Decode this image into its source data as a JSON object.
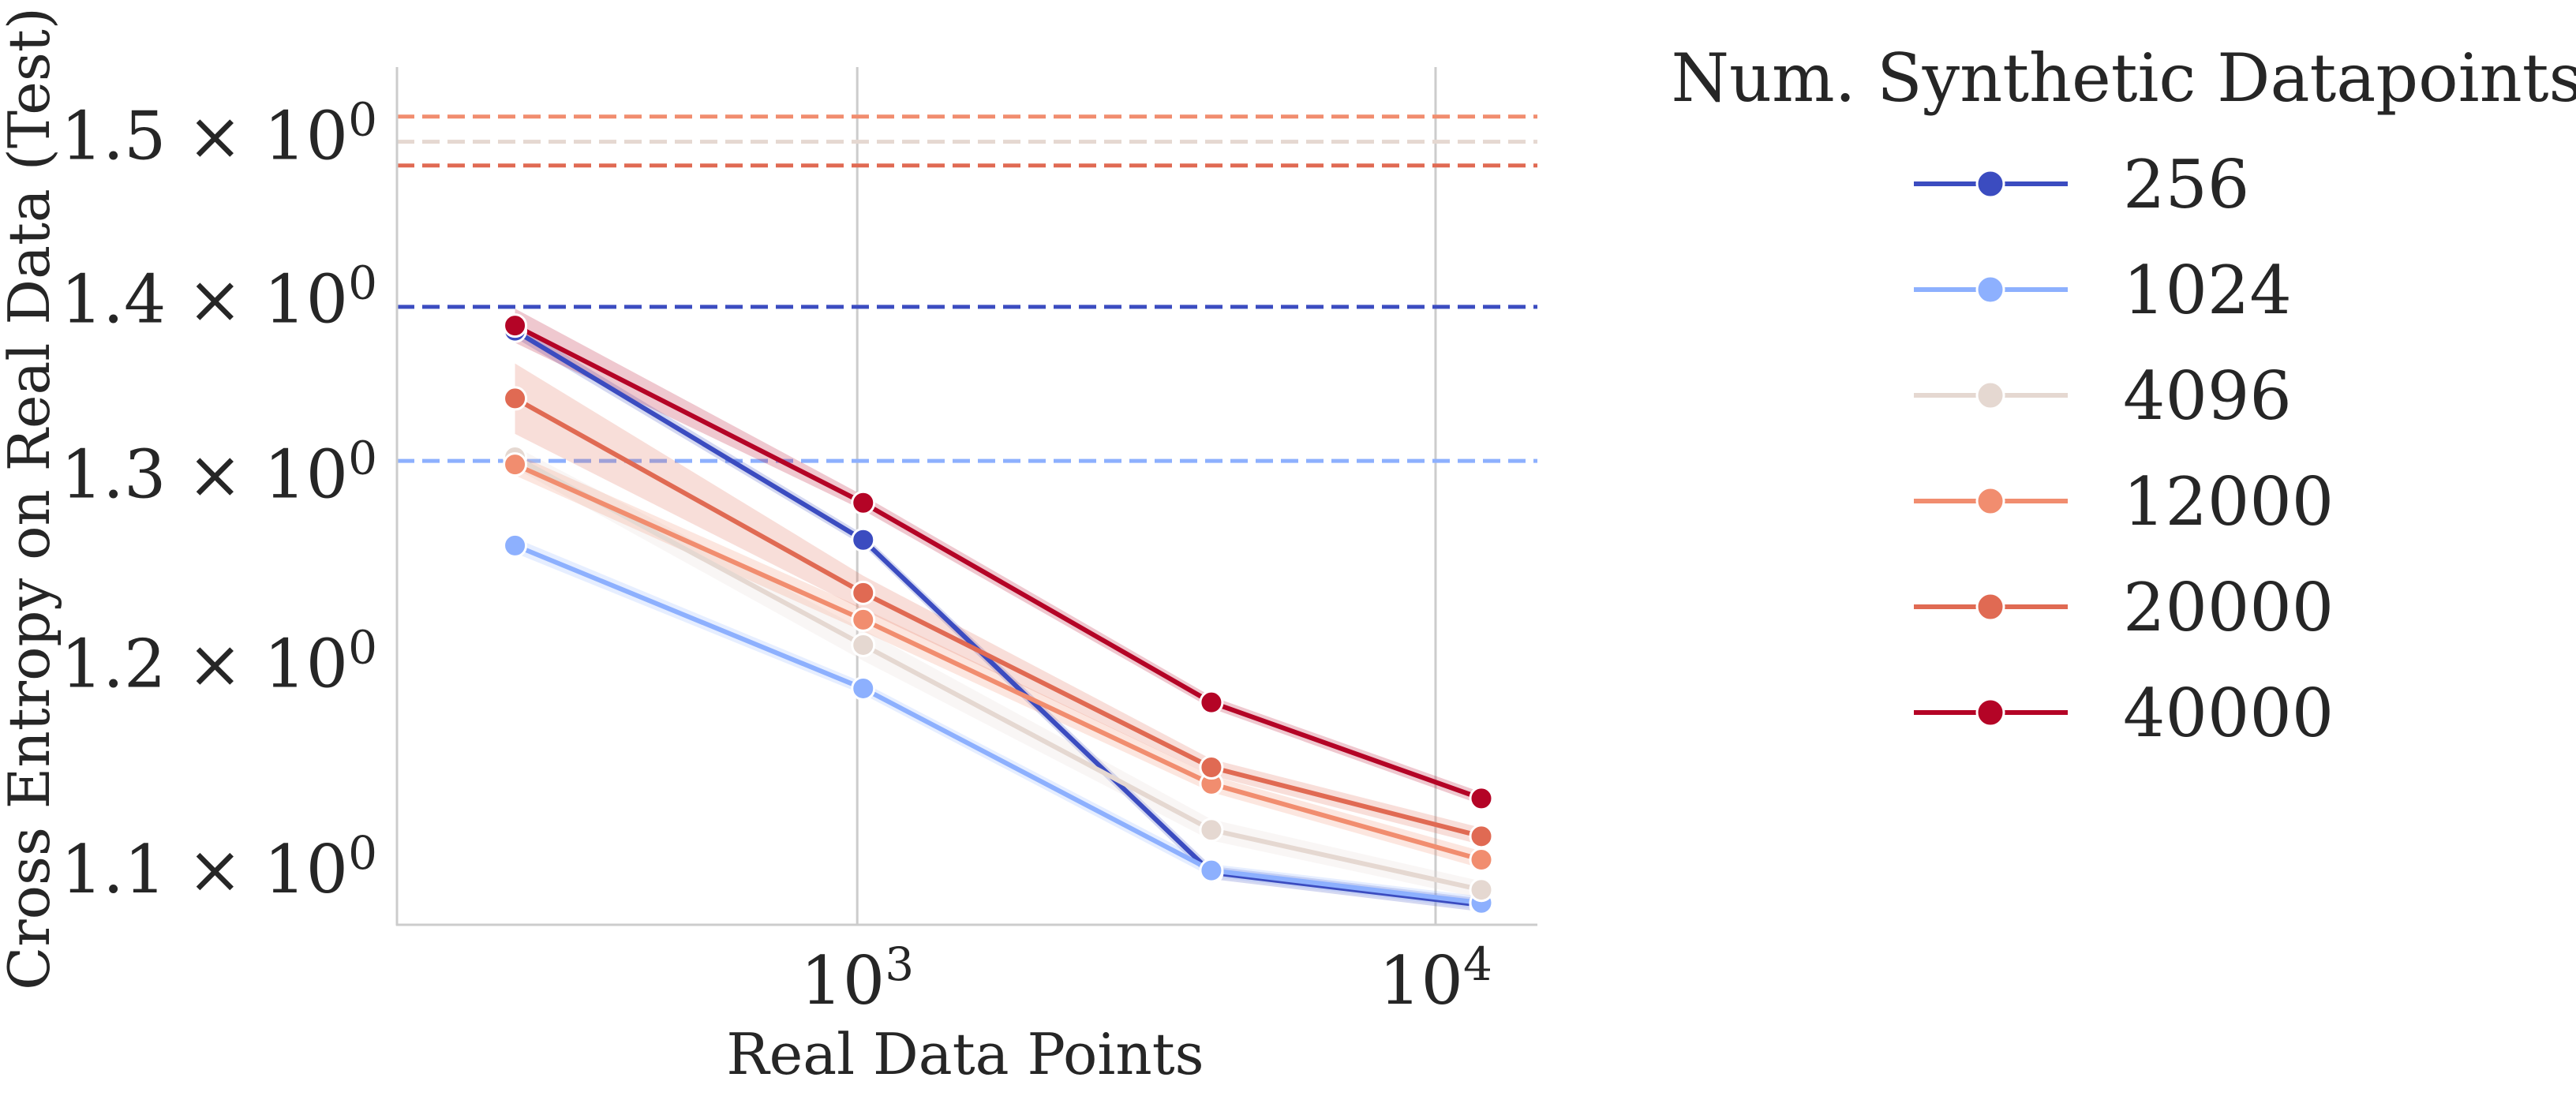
{
  "chart_data": {
    "type": "line",
    "xlabel": "Real Data Points",
    "ylabel": "Cross Entropy on Real Data (Test)",
    "xscale": "log",
    "yscale": "log",
    "xlim": [
      160,
      15000
    ],
    "ylim": [
      1.075,
      1.545
    ],
    "grid": "x-only",
    "x": [
      256,
      1024,
      4096,
      12000
    ],
    "xticks": [
      {
        "value": 1000,
        "base": "10",
        "exp": "3"
      },
      {
        "value": 10000,
        "base": "10",
        "exp": "4"
      }
    ],
    "yticks": [
      {
        "value": 1.1,
        "label": "1.1 × 10",
        "exp": "0"
      },
      {
        "value": 1.2,
        "label": "1.2 × 10",
        "exp": "0"
      },
      {
        "value": 1.3,
        "label": "1.3 × 10",
        "exp": "0"
      },
      {
        "value": 1.4,
        "label": "1.4 × 10",
        "exp": "0"
      },
      {
        "value": 1.5,
        "label": "1.5 × 10",
        "exp": "0"
      }
    ],
    "legend": {
      "title": "Num. Synthetic Datapoints",
      "position": "outside-right"
    },
    "series": [
      {
        "name": "256",
        "color": "#3b4cc0",
        "values": [
          1.382,
          1.265,
          1.099,
          1.084
        ],
        "band": [
          0.004,
          0.003,
          0.003,
          0.003
        ],
        "baseline": 1.396
      },
      {
        "name": "1024",
        "color": "#8db0fe",
        "values": [
          1.262,
          1.188,
          1.1,
          1.085
        ],
        "band": [
          0.004,
          0.003,
          0.003,
          0.003
        ],
        "baseline": 1.308
      },
      {
        "name": "4096",
        "color": "#e5d8d1",
        "values": [
          1.31,
          1.21,
          1.119,
          1.091
        ],
        "band": [
          0.006,
          0.008,
          0.005,
          0.004
        ],
        "baseline": 1.497
      },
      {
        "name": "12000",
        "color": "#f18d6f",
        "values": [
          1.306,
          1.223,
          1.141,
          1.105
        ],
        "band": [
          0.006,
          0.006,
          0.004,
          0.004
        ],
        "baseline": 1.513
      },
      {
        "name": "20000",
        "color": "#e06a53",
        "values": [
          1.343,
          1.237,
          1.149,
          1.116
        ],
        "band": [
          0.02,
          0.009,
          0.004,
          0.004
        ],
        "baseline": 1.482
      },
      {
        "name": "40000",
        "color": "#b40426",
        "values": [
          1.385,
          1.285,
          1.181,
          1.134
        ],
        "band": [
          0.01,
          0.004,
          0.003,
          0.003
        ],
        "baseline": null
      }
    ]
  }
}
